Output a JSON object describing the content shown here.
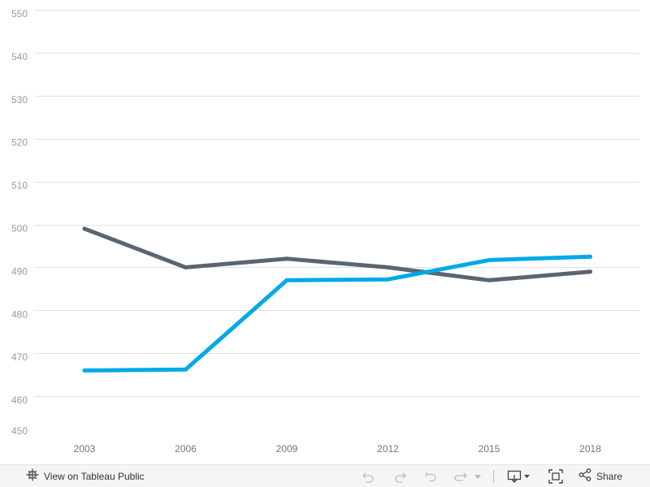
{
  "chart_data": {
    "type": "line",
    "title": "",
    "xlabel": "",
    "ylabel": "",
    "x": [
      "2003",
      "2006",
      "2009",
      "2012",
      "2015",
      "2018"
    ],
    "ylim": [
      450,
      550
    ],
    "yticks": [
      "450",
      "460",
      "470",
      "480",
      "490",
      "500",
      "510",
      "520",
      "530",
      "540",
      "550"
    ],
    "grid": true,
    "legend": "none",
    "series": [
      {
        "color": "#5b6570",
        "values": [
          499,
          490,
          492,
          490,
          487,
          489
        ]
      },
      {
        "color": "#00a9e8",
        "values": [
          466,
          466.2,
          487,
          487.2,
          491.7,
          492.5
        ]
      }
    ]
  },
  "toolbar": {
    "view_label": "View on Tableau Public",
    "share_label": "Share",
    "icons": [
      "tableau-logo-icon",
      "undo-icon",
      "redo-icon",
      "revert-icon",
      "refresh-icon",
      "dropdown-icon",
      "download-icon",
      "fullscreen-icon",
      "share-icon"
    ]
  }
}
